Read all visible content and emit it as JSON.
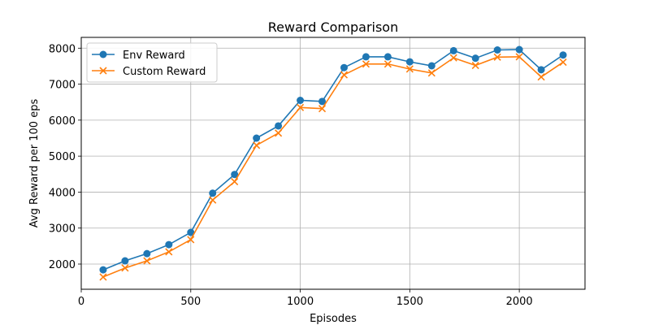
{
  "chart_data": {
    "type": "line",
    "title": "Reward Comparison",
    "xlabel": "Episodes",
    "ylabel": "Avg Reward per 100 eps",
    "xlim": [
      0,
      2300
    ],
    "ylim": [
      1300,
      8300
    ],
    "xticks": [
      0,
      500,
      1000,
      1500,
      2000
    ],
    "yticks": [
      2000,
      3000,
      4000,
      5000,
      6000,
      7000,
      8000
    ],
    "grid": true,
    "legend_position": "top-left",
    "x": [
      100,
      200,
      300,
      400,
      500,
      600,
      700,
      800,
      900,
      1000,
      1100,
      1200,
      1300,
      1400,
      1500,
      1600,
      1700,
      1800,
      1900,
      2000,
      2100,
      2200
    ],
    "series": [
      {
        "name": "Env Reward",
        "color": "#1f77b4",
        "marker": "circle",
        "values": [
          1840,
          2090,
          2290,
          2540,
          2880,
          3970,
          4490,
          5500,
          5840,
          6550,
          6520,
          7460,
          7760,
          7760,
          7620,
          7510,
          7930,
          7720,
          7950,
          7960,
          7400,
          7810
        ]
      },
      {
        "name": "Custom Reward",
        "color": "#ff7f0e",
        "marker": "x",
        "values": [
          1640,
          1890,
          2090,
          2340,
          2680,
          3780,
          4290,
          5300,
          5640,
          6350,
          6320,
          7260,
          7560,
          7560,
          7420,
          7310,
          7730,
          7520,
          7750,
          7760,
          7200,
          7610
        ]
      }
    ]
  }
}
